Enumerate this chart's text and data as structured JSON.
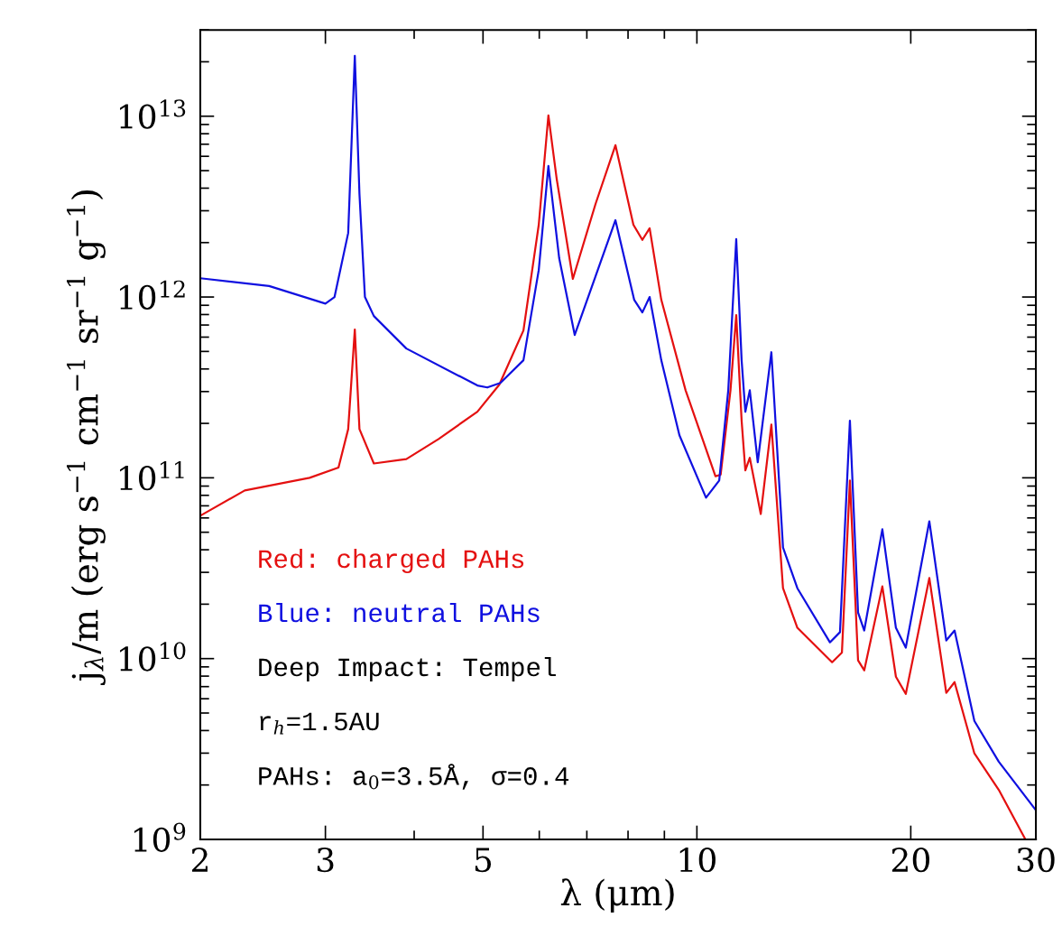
{
  "chart_data": {
    "type": "line",
    "xlabel": "λ (μm)",
    "ylabel": "j$_{λ}$/m (erg s$^{−1}$ cm$^{−1}$ sr$^{−1}$ g$^{−1}$)",
    "log": "xy",
    "xlim": [
      2,
      30
    ],
    "xticks": [
      2,
      3,
      5,
      10,
      20,
      30
    ],
    "ylim": [
      1000000000.0,
      30000000000000.0
    ],
    "yticks": [
      {
        "value": 1000000000.0,
        "label": "10$^{9}$"
      },
      {
        "value": 10000000000.0,
        "label": "10$^{10}$"
      },
      {
        "value": 100000000000.0,
        "label": "10$^{11}$"
      },
      {
        "value": 1000000000000.0,
        "label": "10$^{12}$"
      },
      {
        "value": 10000000000000.0,
        "label": "10$^{13}$"
      }
    ],
    "series": [
      {
        "name": "Red: charged PAHs",
        "color": "#e41010",
        "x": [
          2.0,
          2.31,
          2.85,
          3.13,
          3.23,
          3.3,
          3.35,
          3.51,
          3.9,
          4.33,
          4.91,
          5.27,
          5.7,
          5.99,
          6.18,
          6.35,
          6.69,
          7.2,
          7.68,
          8.14,
          8.38,
          8.58,
          8.91,
          9.64,
          10.62,
          10.8,
          11.15,
          11.36,
          11.56,
          11.7,
          11.87,
          12.3,
          12.73,
          13.22,
          13.85,
          15.5,
          16.0,
          16.42,
          16.86,
          17.2,
          18.24,
          19.06,
          19.68,
          21.24,
          22.44,
          23.05,
          24.58,
          26.6,
          29.0
        ],
        "values": [
          61700000000.0,
          85100000000.0,
          100000000000.0,
          114000000000.0,
          186000000000.0,
          661000000000.0,
          186000000000.0,
          120000000000.0,
          127000000000.0,
          164000000000.0,
          232000000000.0,
          327000000000.0,
          653000000000.0,
          2510000000000.0,
          10100000000000.0,
          4470000000000.0,
          1260000000000.0,
          3270000000000.0,
          6920000000000.0,
          2510000000000.0,
          2070000000000.0,
          2400000000000.0,
          966000000000.0,
          305000000000.0,
          102000000000.0,
          104000000000.0,
          305000000000.0,
          794000000000.0,
          207000000000.0,
          110000000000.0,
          129000000000.0,
          63100000000.0,
          197000000000.0,
          24500000000.0,
          14800000000.0,
          9550000000.0,
          10800000000.0,
          96600000000.0,
          9770000000.0,
          8610000000.0,
          25100000000.0,
          7940000000.0,
          6380000000.0,
          27900000000.0,
          6460000000.0,
          7410000000.0,
          2990000000.0,
          1880000000.0,
          1000000000.0
        ]
      },
      {
        "name": "Blue: neutral PAHs",
        "color": "#1010e0",
        "x": [
          2.0,
          2.5,
          3.0,
          3.09,
          3.23,
          3.3,
          3.35,
          3.41,
          3.51,
          3.9,
          4.91,
          5.07,
          5.29,
          5.7,
          5.99,
          6.18,
          6.4,
          6.73,
          7.2,
          7.68,
          8.16,
          8.38,
          8.58,
          8.91,
          9.45,
          10.3,
          10.75,
          11.07,
          11.36,
          11.56,
          11.7,
          11.87,
          12.18,
          12.73,
          13.22,
          13.85,
          15.39,
          15.9,
          16.42,
          16.86,
          17.2,
          18.24,
          19.06,
          19.68,
          21.24,
          22.44,
          23.05,
          24.58,
          26.6,
          30.0
        ],
        "values": [
          1270000000000.0,
          1150000000000.0,
          920000000000.0,
          1000000000000.0,
          2260000000000.0,
          21600000000000.0,
          3720000000000.0,
          1000000000000.0,
          785000000000.0,
          519000000000.0,
          324000000000.0,
          316000000000.0,
          335000000000.0,
          447000000000.0,
          1410000000000.0,
          5310000000000.0,
          1640000000000.0,
          617000000000.0,
          1300000000000.0,
          2660000000000.0,
          966000000000.0,
          822000000000.0,
          1000000000000.0,
          447000000000.0,
          172000000000.0,
          77600000000.0,
          96600000000.0,
          305000000000.0,
          2090000000000.0,
          447000000000.0,
          232000000000.0,
          305000000000.0,
          122000000000.0,
          495000000000.0,
          41200000000.0,
          24500000000.0,
          12300000000.0,
          14000000000.0,
          207000000000.0,
          18000000000.0,
          14300000000.0,
          51900000000.0,
          14800000000.0,
          11500000000.0,
          57500000000.0,
          12600000000.0,
          14300000000.0,
          4520000000.0,
          2690000000.0,
          1450000000.0
        ]
      }
    ],
    "annotations": [
      "Deep Impact: Tempel",
      "r$_{h}$=1.5AU",
      "PAHs: a$_{0}$=3.5Å, σ=0.4"
    ]
  }
}
